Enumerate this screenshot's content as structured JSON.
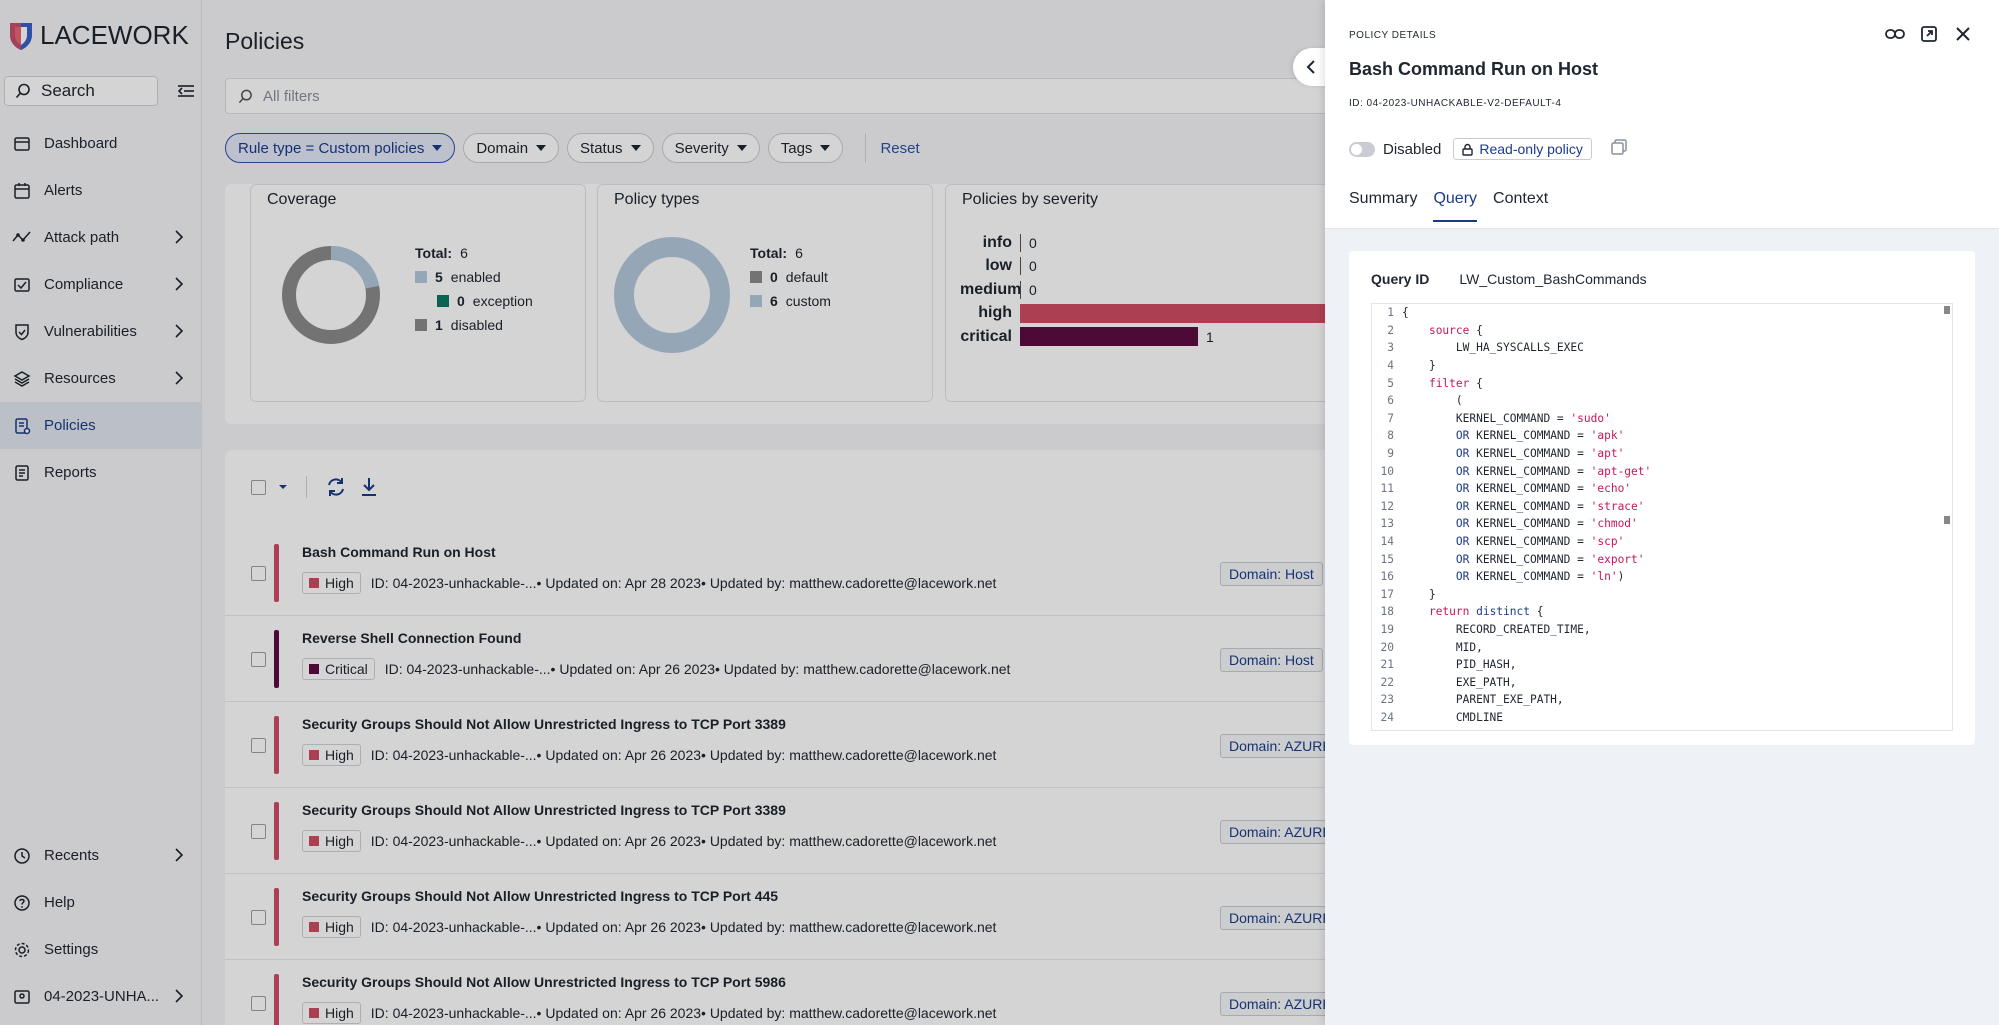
{
  "app": {
    "logo_text": "LACEWORK"
  },
  "sidebar": {
    "search_label": "Search",
    "items": [
      {
        "label": "Dashboard",
        "icon": "dashboard-icon"
      },
      {
        "label": "Alerts",
        "icon": "alerts-icon"
      },
      {
        "label": "Attack path",
        "icon": "attack-path-icon"
      },
      {
        "label": "Compliance",
        "icon": "compliance-icon"
      },
      {
        "label": "Vulnerabilities",
        "icon": "shield-icon"
      },
      {
        "label": "Resources",
        "icon": "layers-icon"
      },
      {
        "label": "Policies",
        "icon": "policies-icon"
      },
      {
        "label": "Reports",
        "icon": "reports-icon"
      }
    ],
    "bottom": [
      {
        "label": "Recents",
        "icon": "clock-icon"
      },
      {
        "label": "Help",
        "icon": "help-icon"
      },
      {
        "label": "Settings",
        "icon": "gear-icon"
      },
      {
        "label": "04-2023-UNHA...",
        "icon": "account-icon"
      }
    ]
  },
  "page": {
    "title": "Policies",
    "filter_placeholder": "All filters",
    "chips": [
      "Rule type = Custom policies",
      "Domain",
      "Status",
      "Severity",
      "Tags"
    ],
    "reset_label": "Reset"
  },
  "summary": {
    "coverage": {
      "title": "Coverage",
      "total_label": "Total:",
      "total": "6",
      "rows": [
        {
          "value": "5",
          "label": "enabled",
          "color": "#b4c8dc"
        },
        {
          "value": "0",
          "label": "exception",
          "color": "#0b7a63"
        },
        {
          "value": "1",
          "label": "disabled",
          "color": "#8b8b8b"
        }
      ]
    },
    "policy_types": {
      "title": "Policy types",
      "total_label": "Total:",
      "total": "6",
      "rows": [
        {
          "value": "0",
          "label": "default",
          "color": "#8b8b8b"
        },
        {
          "value": "6",
          "label": "custom",
          "color": "#b4c8dc"
        }
      ]
    },
    "severity": {
      "title": "Policies by severity",
      "rows": [
        {
          "label": "info",
          "value": "0"
        },
        {
          "label": "low",
          "value": "0"
        },
        {
          "label": "medium",
          "value": "0"
        },
        {
          "label": "high",
          "value": ""
        },
        {
          "label": "critical",
          "value": "1"
        }
      ]
    }
  },
  "policies": [
    {
      "title": "Bash Command Run on Host",
      "severity": "High",
      "meta": "ID: 04-2023-unhackable-...• Updated on: Apr 28 2023• Updated by: matthew.cadorette@lacework.net",
      "domain": "Domain: Host"
    },
    {
      "title": "Reverse Shell Connection Found",
      "severity": "Critical",
      "meta": "ID: 04-2023-unhackable-...• Updated on: Apr 26 2023• Updated by: matthew.cadorette@lacework.net",
      "domain": "Domain: Host"
    },
    {
      "title": "Security Groups Should Not Allow Unrestricted Ingress to TCP Port 3389",
      "severity": "High",
      "meta": "ID: 04-2023-unhackable-...• Updated on: Apr 26 2023• Updated by: matthew.cadorette@lacework.net",
      "domain": "Domain: AZURE"
    },
    {
      "title": "Security Groups Should Not Allow Unrestricted Ingress to TCP Port 3389",
      "severity": "High",
      "meta": "ID: 04-2023-unhackable-...• Updated on: Apr 26 2023• Updated by: matthew.cadorette@lacework.net",
      "domain": "Domain: AZURE"
    },
    {
      "title": "Security Groups Should Not Allow Unrestricted Ingress to TCP Port 445",
      "severity": "High",
      "meta": "ID: 04-2023-unhackable-...• Updated on: Apr 26 2023• Updated by: matthew.cadorette@lacework.net",
      "domain": "Domain: AZURE"
    },
    {
      "title": "Security Groups Should Not Allow Unrestricted Ingress to TCP Port 5986",
      "severity": "High",
      "meta": "ID: 04-2023-unhackable-...• Updated on: Apr 26 2023• Updated by: matthew.cadorette@lacework.net",
      "domain": "Domain: AZURE"
    }
  ],
  "colors": {
    "high": "#d04c63",
    "critical": "#5e0d43",
    "accent": "#1b3b8a"
  },
  "drawer": {
    "kicker": "POLICY DETAILS",
    "title": "Bash Command Run on Host",
    "id": "ID: 04-2023-UNHACKABLE-V2-DEFAULT-4",
    "status": "Disabled",
    "readonly_label": "Read-only policy",
    "tabs": [
      "Summary",
      "Query",
      "Context"
    ],
    "query_id_label": "Query ID",
    "query_id": "LW_Custom_BashCommands",
    "code": [
      "{",
      "    source {",
      "        LW_HA_SYSCALLS_EXEC",
      "    }",
      "    filter {",
      "        (",
      "        KERNEL_COMMAND = 'sudo'",
      "        OR KERNEL_COMMAND = 'apk'",
      "        OR KERNEL_COMMAND = 'apt'",
      "        OR KERNEL_COMMAND = 'apt-get'",
      "        OR KERNEL_COMMAND = 'echo'",
      "        OR KERNEL_COMMAND = 'strace'",
      "        OR KERNEL_COMMAND = 'chmod'",
      "        OR KERNEL_COMMAND = 'scp'",
      "        OR KERNEL_COMMAND = 'export'",
      "        OR KERNEL_COMMAND = 'ln')",
      "    }",
      "    return distinct {",
      "        RECORD_CREATED_TIME,",
      "        MID,",
      "        PID_HASH,",
      "        EXE_PATH,",
      "        PARENT_EXE_PATH,",
      "        CMDLINE"
    ]
  }
}
